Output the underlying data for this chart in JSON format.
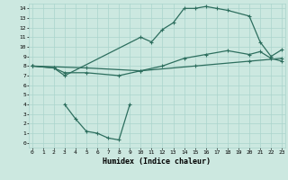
{
  "bg_color": "#cce8e0",
  "grid_color": "#aad4cc",
  "line_color": "#2d6e5e",
  "line_width": 0.9,
  "marker": "+",
  "marker_size": 3.5,
  "marker_lw": 0.8,
  "xlim": [
    -0.3,
    23.3
  ],
  "ylim": [
    -0.5,
    14.5
  ],
  "xticks": [
    0,
    1,
    2,
    3,
    4,
    5,
    6,
    7,
    8,
    9,
    10,
    11,
    12,
    13,
    14,
    15,
    16,
    17,
    18,
    19,
    20,
    21,
    22,
    23
  ],
  "yticks": [
    0,
    1,
    2,
    3,
    4,
    5,
    6,
    7,
    8,
    9,
    10,
    11,
    12,
    13,
    14
  ],
  "xlabel": "Humidex (Indice chaleur)",
  "line1_x": [
    0,
    2,
    3,
    10,
    11,
    12,
    13,
    14,
    15,
    16,
    17,
    18,
    20,
    21,
    22,
    23
  ],
  "line1_y": [
    8.0,
    7.8,
    7.0,
    11.0,
    10.5,
    11.8,
    12.5,
    14.0,
    14.0,
    14.2,
    14.0,
    13.8,
    13.2,
    10.5,
    9.0,
    9.7
  ],
  "line2_x": [
    0,
    2,
    3,
    5,
    8,
    10,
    12,
    14,
    16,
    18,
    20,
    21,
    22,
    23
  ],
  "line2_y": [
    8.0,
    7.8,
    7.3,
    7.3,
    7.0,
    7.5,
    8.0,
    8.8,
    9.2,
    9.6,
    9.2,
    9.5,
    8.8,
    8.5
  ],
  "line3_x": [
    3,
    4,
    5,
    6,
    7,
    8,
    9
  ],
  "line3_y": [
    4.0,
    2.5,
    1.2,
    1.0,
    0.5,
    0.3,
    4.0
  ],
  "line4_x": [
    0,
    5,
    10,
    15,
    20,
    23
  ],
  "line4_y": [
    8.0,
    7.8,
    7.5,
    8.0,
    8.5,
    8.8
  ]
}
